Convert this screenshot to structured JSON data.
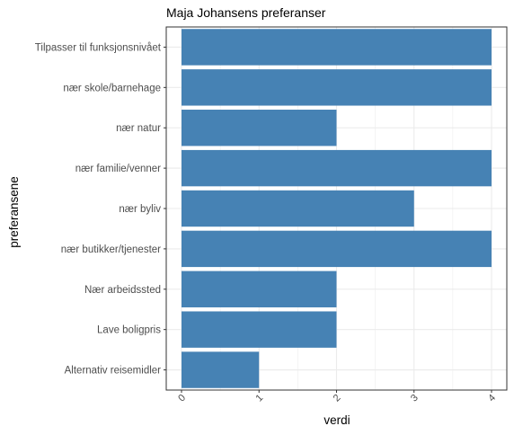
{
  "chart_data": {
    "type": "bar",
    "orientation": "horizontal",
    "title": "Maja Johansens preferanser",
    "xlabel": "verdi",
    "ylabel": "preferansene",
    "categories": [
      "Tilpasser til funksjonsnivået",
      "nær skole/barnehage",
      "nær natur",
      "nær familie/venner",
      "nær byliv",
      "nær butikker/tjenester",
      "Nær arbeidssted",
      "Lave boligpris",
      "Alternativ reisemidler"
    ],
    "values": [
      4,
      4,
      2,
      4,
      3,
      4,
      2,
      2,
      1
    ],
    "xlim": [
      0,
      4
    ],
    "xticks": [
      "0",
      "1",
      "2",
      "3",
      "4"
    ],
    "grid": true,
    "bar_color": "#4682b4",
    "grid_color": "#ebebeb"
  }
}
